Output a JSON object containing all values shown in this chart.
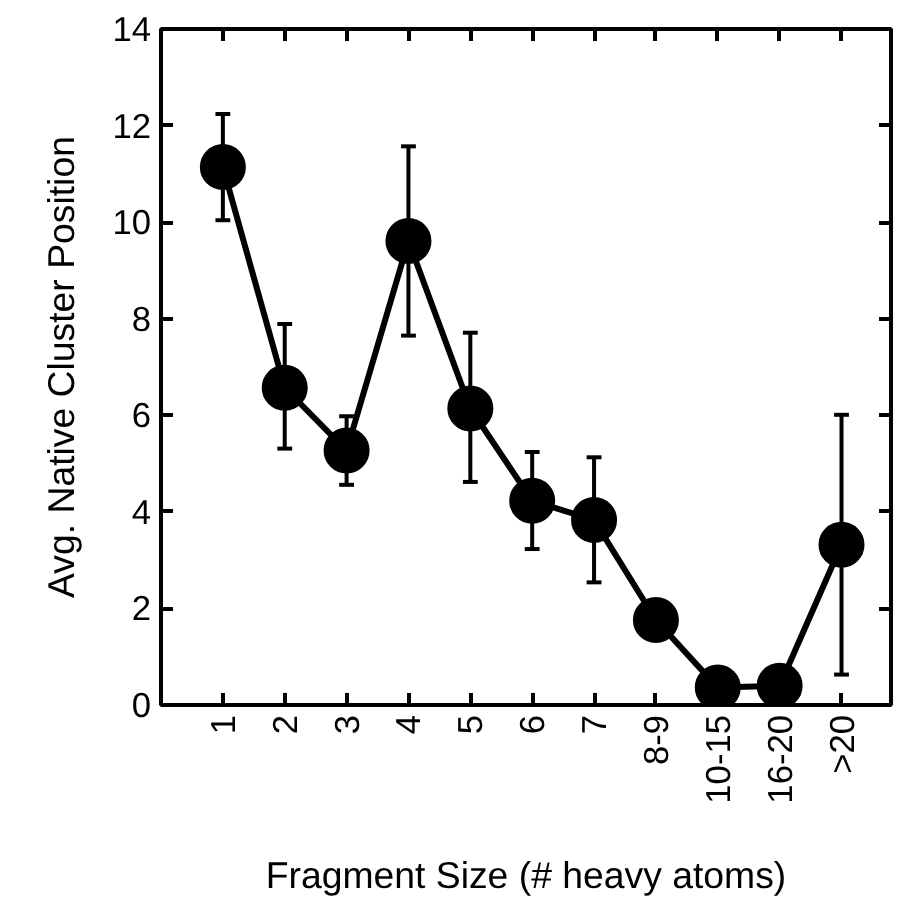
{
  "chart_data": {
    "type": "line",
    "xlabel": "Fragment Size (# heavy atoms)",
    "ylabel": "Avg. Native Cluster Position",
    "categories": [
      "1",
      "2",
      "3",
      "4",
      "5",
      "6",
      "7",
      "8-9",
      "10-15",
      "16-20",
      ">20"
    ],
    "series": [
      {
        "color": "#000000",
        "values": [
          11.14,
          6.57,
          5.27,
          9.61,
          6.14,
          4.23,
          3.83,
          1.76,
          0.36,
          0.4,
          3.32
        ],
        "errors": [
          [
            10.04,
            12.24
          ],
          [
            5.31,
            7.89
          ],
          [
            4.56,
            5.98
          ],
          [
            7.65,
            11.57
          ],
          [
            4.62,
            7.71
          ],
          [
            3.23,
            5.24
          ],
          [
            2.54,
            5.13
          ],
          null,
          null,
          null,
          [
            0.63,
            6.01
          ]
        ]
      }
    ],
    "ylim": [
      0,
      14
    ],
    "yticks": [
      0,
      2,
      4,
      6,
      8,
      10,
      12,
      14
    ],
    "marker": "circle",
    "line_style": "solid"
  }
}
